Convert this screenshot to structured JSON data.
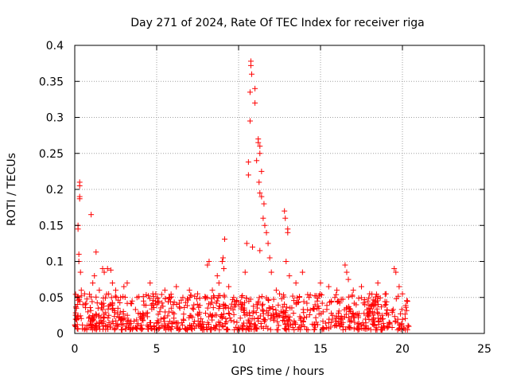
{
  "chart_data": {
    "type": "scatter",
    "title": "Day 271 of 2024, Rate Of TEC Index for receiver riga",
    "xlabel": "GPS time / hours",
    "ylabel": "ROTI / TECUs",
    "xlim": [
      0,
      25
    ],
    "ylim": [
      0,
      0.4
    ],
    "x_ticks": [
      0,
      5,
      10,
      15,
      20,
      25
    ],
    "x_tick_labels": [
      "0",
      "5",
      "10",
      "15",
      "20",
      "25"
    ],
    "y_ticks": [
      0,
      0.05,
      0.1,
      0.15,
      0.2,
      0.25,
      0.3,
      0.35,
      0.4
    ],
    "y_tick_labels": [
      "0",
      "0.05",
      "0.1",
      "0.15",
      "0.2",
      "0.25",
      "0.3",
      "0.35",
      "0.4"
    ],
    "grid": true,
    "marker": "plus",
    "color": "#ff0000",
    "series": [
      {
        "name": "ROTI",
        "points": [
          [
            0.1,
            0.02
          ],
          [
            0.1,
            0.035
          ],
          [
            0.15,
            0.05
          ],
          [
            0.2,
            0.145
          ],
          [
            0.2,
            0.15
          ],
          [
            0.25,
            0.1
          ],
          [
            0.25,
            0.11
          ],
          [
            0.3,
            0.205
          ],
          [
            0.3,
            0.21
          ],
          [
            0.3,
            0.187
          ],
          [
            0.3,
            0.19
          ],
          [
            0.35,
            0.085
          ],
          [
            0.4,
            0.06
          ],
          [
            0.5,
            0.04
          ],
          [
            0.6,
            0.055
          ],
          [
            0.8,
            0.03
          ],
          [
            1.0,
            0.165
          ],
          [
            1.1,
            0.07
          ],
          [
            1.2,
            0.08
          ],
          [
            1.3,
            0.113
          ],
          [
            1.5,
            0.06
          ],
          [
            1.7,
            0.09
          ],
          [
            1.8,
            0.085
          ],
          [
            2.0,
            0.09
          ],
          [
            2.2,
            0.088
          ],
          [
            2.3,
            0.07
          ],
          [
            2.5,
            0.06
          ],
          [
            2.8,
            0.05
          ],
          [
            3.0,
            0.065
          ],
          [
            3.2,
            0.07
          ],
          [
            3.5,
            0.045
          ],
          [
            3.8,
            0.05
          ],
          [
            4.2,
            0.045
          ],
          [
            4.6,
            0.07
          ],
          [
            5.0,
            0.04
          ],
          [
            5.5,
            0.06
          ],
          [
            5.8,
            0.05
          ],
          [
            6.2,
            0.065
          ],
          [
            6.6,
            0.05
          ],
          [
            7.0,
            0.06
          ],
          [
            7.5,
            0.055
          ],
          [
            8.0,
            0.05
          ],
          [
            8.1,
            0.095
          ],
          [
            8.2,
            0.1
          ],
          [
            8.4,
            0.06
          ],
          [
            8.7,
            0.08
          ],
          [
            8.8,
            0.07
          ],
          [
            9.0,
            0.1
          ],
          [
            9.05,
            0.105
          ],
          [
            9.1,
            0.09
          ],
          [
            9.15,
            0.131
          ],
          [
            9.4,
            0.065
          ],
          [
            9.7,
            0.05
          ],
          [
            10.0,
            0.04
          ],
          [
            10.4,
            0.085
          ],
          [
            10.5,
            0.125
          ],
          [
            10.6,
            0.238
          ],
          [
            10.6,
            0.22
          ],
          [
            10.7,
            0.295
          ],
          [
            10.7,
            0.335
          ],
          [
            10.75,
            0.378
          ],
          [
            10.75,
            0.372
          ],
          [
            10.8,
            0.36
          ],
          [
            10.85,
            0.12
          ],
          [
            11.0,
            0.34
          ],
          [
            11.0,
            0.32
          ],
          [
            11.1,
            0.24
          ],
          [
            11.2,
            0.265
          ],
          [
            11.2,
            0.27
          ],
          [
            11.3,
            0.25
          ],
          [
            11.3,
            0.26
          ],
          [
            11.25,
            0.21
          ],
          [
            11.3,
            0.195
          ],
          [
            11.3,
            0.115
          ],
          [
            11.4,
            0.225
          ],
          [
            11.4,
            0.19
          ],
          [
            11.5,
            0.16
          ],
          [
            11.55,
            0.18
          ],
          [
            11.6,
            0.15
          ],
          [
            11.7,
            0.14
          ],
          [
            11.8,
            0.125
          ],
          [
            11.9,
            0.105
          ],
          [
            12.0,
            0.085
          ],
          [
            12.3,
            0.06
          ],
          [
            12.5,
            0.055
          ],
          [
            12.8,
            0.17
          ],
          [
            12.85,
            0.16
          ],
          [
            12.9,
            0.1
          ],
          [
            13.0,
            0.145
          ],
          [
            13.0,
            0.14
          ],
          [
            13.1,
            0.08
          ],
          [
            13.5,
            0.07
          ],
          [
            13.9,
            0.085
          ],
          [
            14.3,
            0.05
          ],
          [
            14.8,
            0.045
          ],
          [
            15.0,
            0.07
          ],
          [
            15.5,
            0.065
          ],
          [
            16.0,
            0.06
          ],
          [
            16.5,
            0.095
          ],
          [
            16.6,
            0.085
          ],
          [
            16.7,
            0.075
          ],
          [
            17.0,
            0.06
          ],
          [
            17.5,
            0.065
          ],
          [
            18.0,
            0.055
          ],
          [
            18.5,
            0.07
          ],
          [
            19.0,
            0.055
          ],
          [
            19.5,
            0.09
          ],
          [
            19.6,
            0.085
          ],
          [
            19.8,
            0.065
          ],
          [
            20.0,
            0.055
          ],
          [
            20.3,
            0.045
          ]
        ]
      }
    ],
    "noise_band": {
      "description": "dense cluster of ROTI values between 0.005 and about 0.05 TECU/s throughout the observed period",
      "x_range": [
        0,
        20.4
      ],
      "y_range": [
        0.005,
        0.055
      ]
    }
  }
}
